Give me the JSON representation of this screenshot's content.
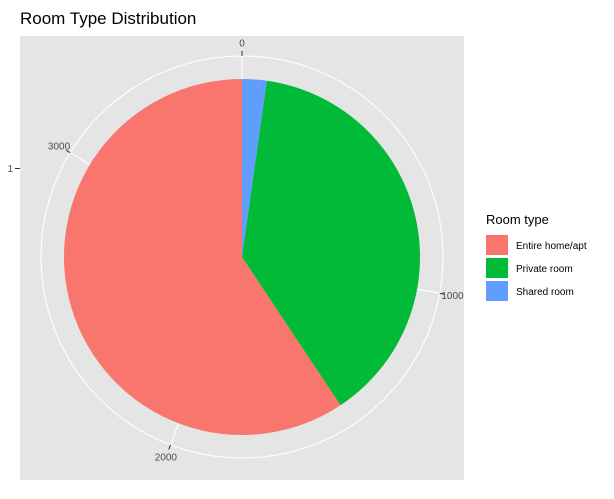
{
  "chart_data": {
    "type": "pie",
    "title": "Room Type Distribution",
    "y_axis_tick": "1",
    "theta_ticks": [
      {
        "label": "0",
        "value": 0
      },
      {
        "label": "1000",
        "value": 1000
      },
      {
        "label": "2000",
        "value": 2000
      },
      {
        "label": "3000",
        "value": 3000
      }
    ],
    "total": 3585,
    "slices": [
      {
        "label": "Shared room",
        "value": 80,
        "color": "#619CFF"
      },
      {
        "label": "Private room",
        "value": 1378,
        "color": "#00BA38"
      },
      {
        "label": "Entire home/apt",
        "value": 2127,
        "color": "#F8766D"
      }
    ],
    "legend": {
      "title": "Room type",
      "position": "right",
      "items": [
        {
          "label": "Entire home/apt",
          "color": "#F8766D"
        },
        {
          "label": "Private room",
          "color": "#00BA38"
        },
        {
          "label": "Shared room",
          "color": "#619CFF"
        }
      ]
    },
    "panel_background": "#E5E5E5",
    "grid_color": "#FFFFFF"
  }
}
